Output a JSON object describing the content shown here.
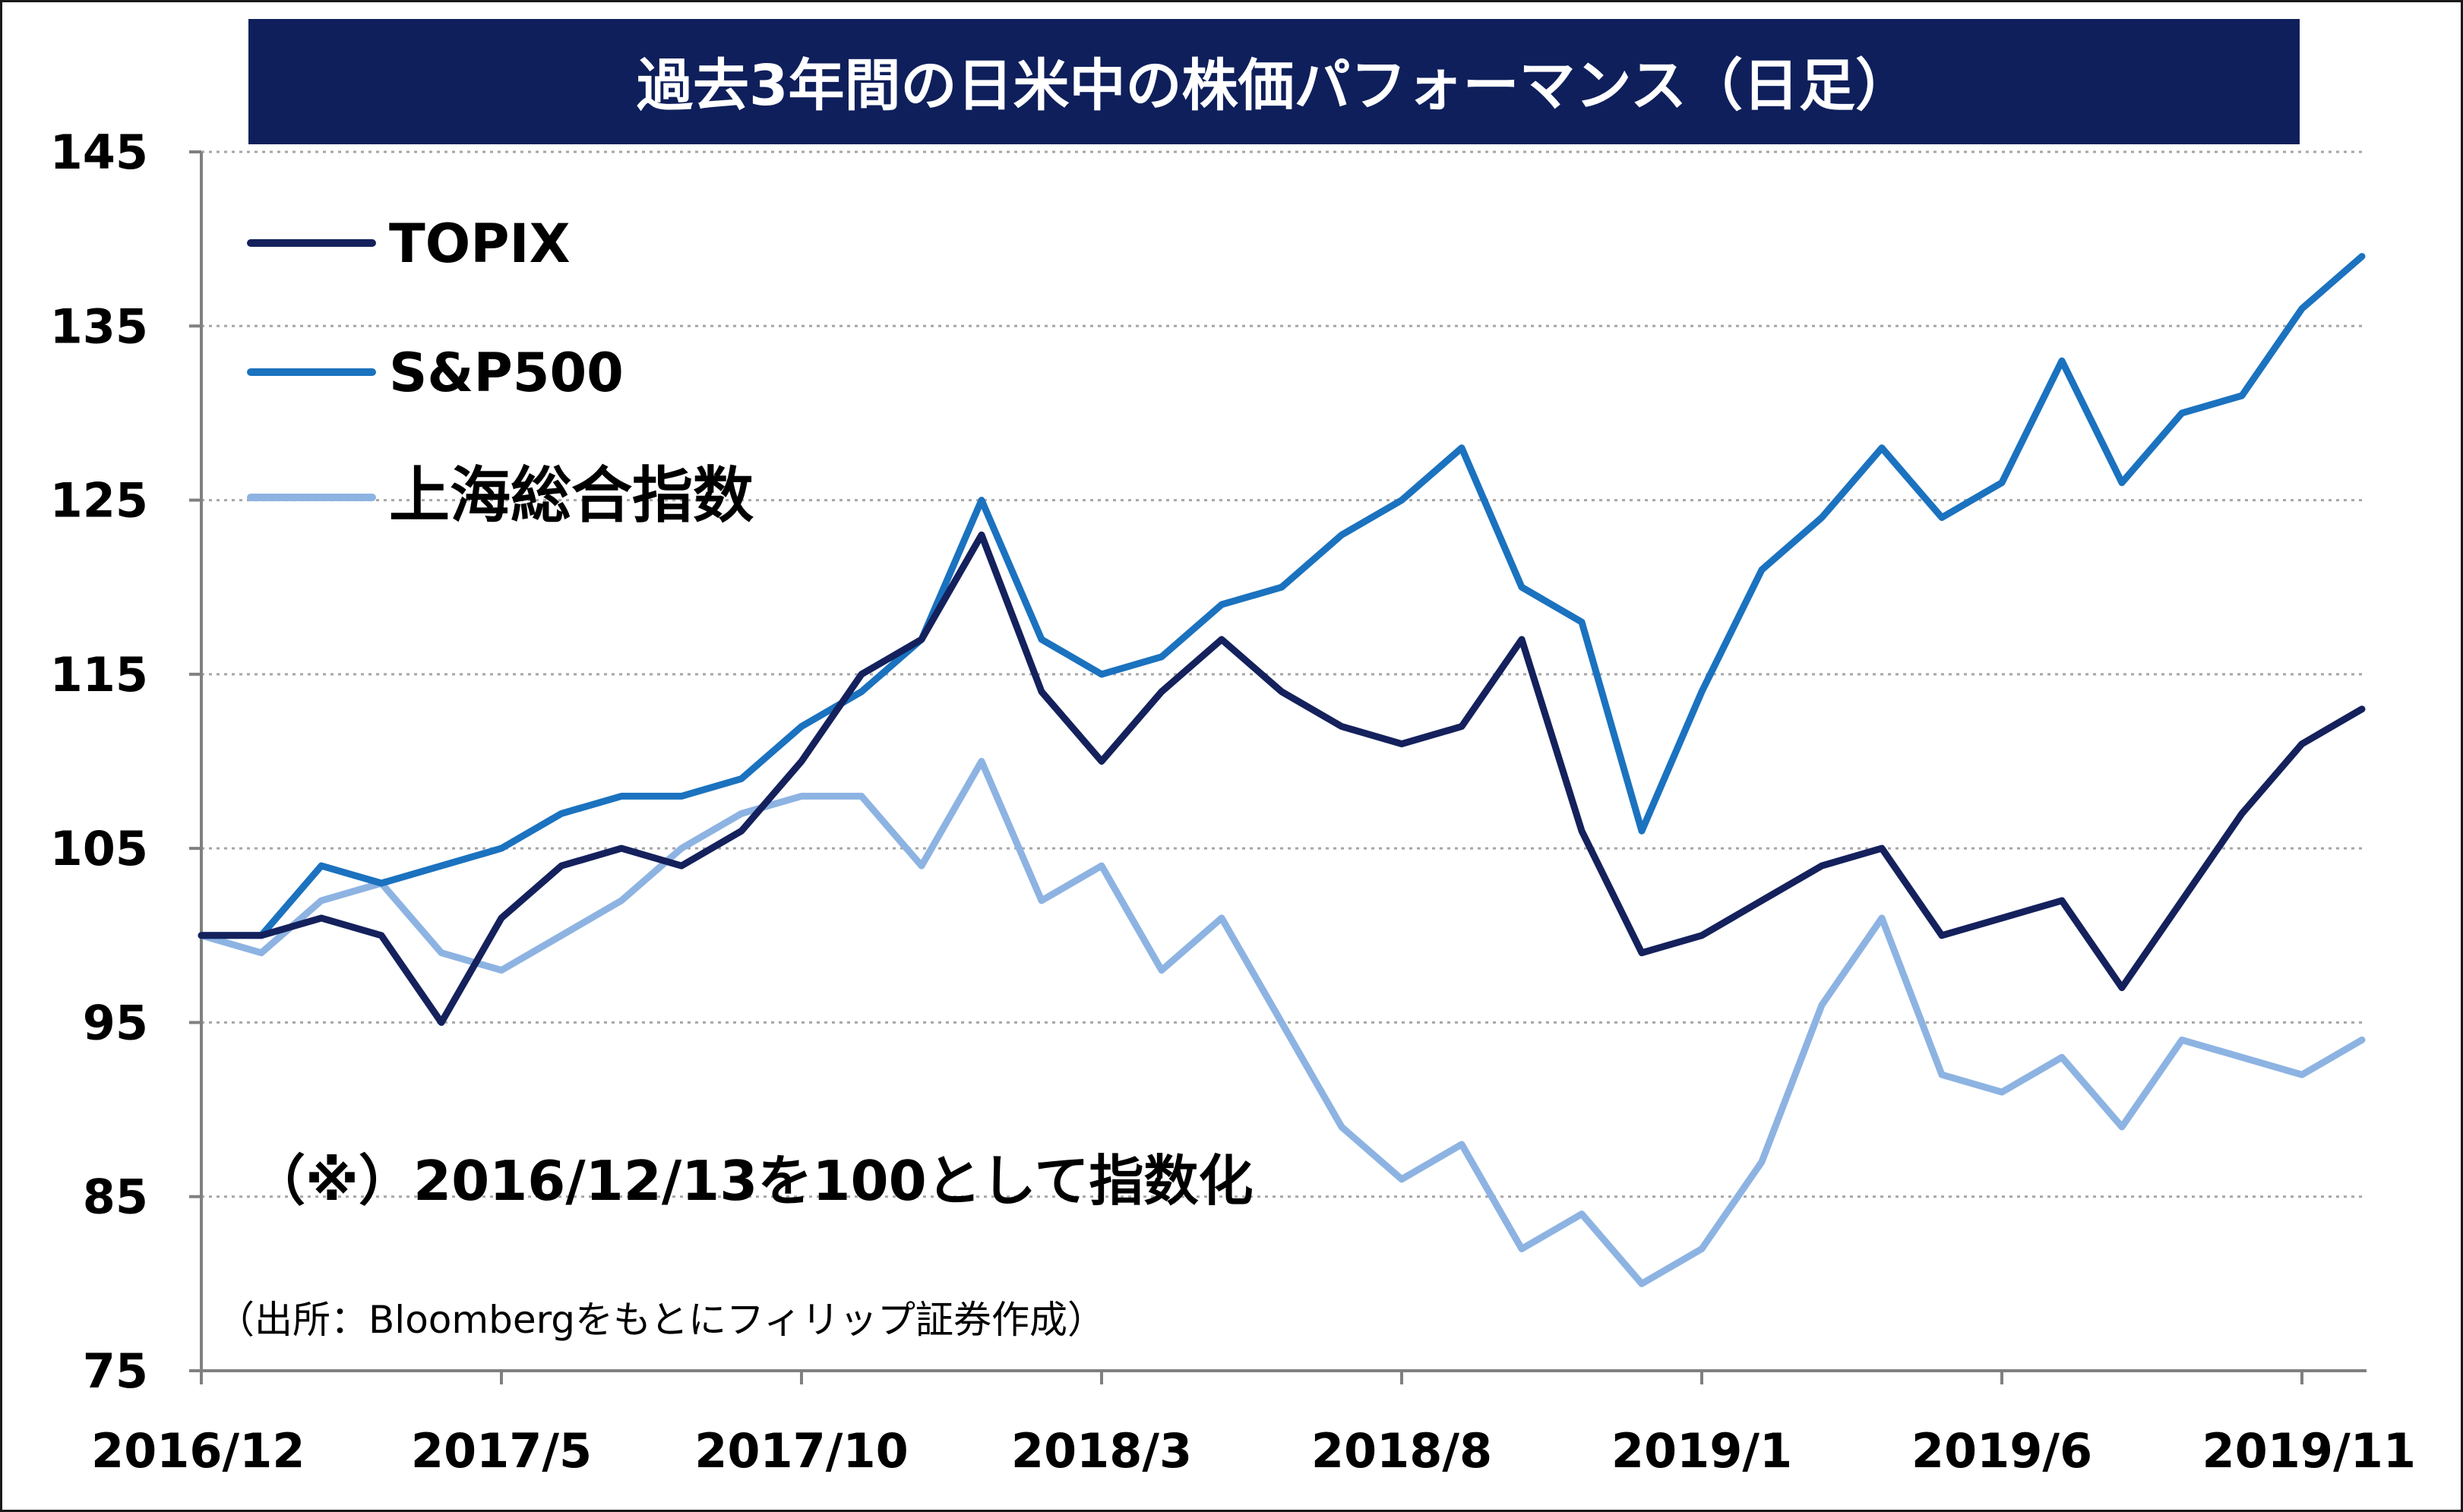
{
  "chart_data": {
    "type": "line",
    "title": "過去3年間の日米中の株価パフォーマンス（日足）",
    "annotation": "（※）2016/12/13を100として指数化",
    "source": "（出所：Bloombergをもとにフィリップ証券作成）",
    "ylim": [
      75,
      145
    ],
    "yticks": [
      "145",
      "135",
      "125",
      "115",
      "105",
      "95",
      "85",
      "75"
    ],
    "xticks": [
      "2016/12",
      "2017/5",
      "2017/10",
      "2018/3",
      "2018/8",
      "2019/1",
      "2019/6",
      "2019/11"
    ],
    "grid": true,
    "legend_position": "top-left",
    "colors": {
      "title_bg": "#0e1f5b",
      "title_text": "#ffffff",
      "grid": "#a6a6a6",
      "axis": "#808080"
    },
    "series": [
      {
        "name": "TOPIX",
        "color": "#14215c",
        "points": [
          [
            "2016/12",
            100
          ],
          [
            "2017/1",
            100
          ],
          [
            "2017/2",
            101
          ],
          [
            "2017/3",
            100
          ],
          [
            "2017/4",
            95
          ],
          [
            "2017/5",
            101
          ],
          [
            "2017/6",
            104
          ],
          [
            "2017/7",
            105
          ],
          [
            "2017/8",
            104
          ],
          [
            "2017/9",
            106
          ],
          [
            "2017/10",
            110
          ],
          [
            "2017/11",
            115
          ],
          [
            "2017/12",
            117
          ],
          [
            "2018/1",
            123
          ],
          [
            "2018/2",
            114
          ],
          [
            "2018/3",
            110
          ],
          [
            "2018/4",
            114
          ],
          [
            "2018/5",
            117
          ],
          [
            "2018/6",
            114
          ],
          [
            "2018/7",
            112
          ],
          [
            "2018/8",
            111
          ],
          [
            "2018/9",
            112
          ],
          [
            "2018/10",
            117
          ],
          [
            "2018/11",
            106
          ],
          [
            "2018/12",
            99
          ],
          [
            "2019/1",
            100
          ],
          [
            "2019/2",
            102
          ],
          [
            "2019/3",
            104
          ],
          [
            "2019/4",
            105
          ],
          [
            "2019/5",
            100
          ],
          [
            "2019/6",
            101
          ],
          [
            "2019/7",
            102
          ],
          [
            "2019/8",
            97
          ],
          [
            "2019/9",
            102
          ],
          [
            "2019/10",
            107
          ],
          [
            "2019/11",
            111
          ],
          [
            "2019/12",
            113
          ]
        ]
      },
      {
        "name": "S&P500",
        "color": "#1b72bf",
        "points": [
          [
            "2016/12",
            100
          ],
          [
            "2017/1",
            100
          ],
          [
            "2017/2",
            104
          ],
          [
            "2017/3",
            103
          ],
          [
            "2017/4",
            104
          ],
          [
            "2017/5",
            105
          ],
          [
            "2017/6",
            107
          ],
          [
            "2017/7",
            108
          ],
          [
            "2017/8",
            108
          ],
          [
            "2017/9",
            109
          ],
          [
            "2017/10",
            112
          ],
          [
            "2017/11",
            114
          ],
          [
            "2017/12",
            117
          ],
          [
            "2018/1",
            125
          ],
          [
            "2018/2",
            117
          ],
          [
            "2018/3",
            115
          ],
          [
            "2018/4",
            116
          ],
          [
            "2018/5",
            119
          ],
          [
            "2018/6",
            120
          ],
          [
            "2018/7",
            123
          ],
          [
            "2018/8",
            125
          ],
          [
            "2018/9",
            128
          ],
          [
            "2018/10",
            120
          ],
          [
            "2018/11",
            118
          ],
          [
            "2018/12",
            106
          ],
          [
            "2019/1",
            114
          ],
          [
            "2019/2",
            121
          ],
          [
            "2019/3",
            124
          ],
          [
            "2019/4",
            128
          ],
          [
            "2019/5",
            124
          ],
          [
            "2019/6",
            126
          ],
          [
            "2019/7",
            133
          ],
          [
            "2019/8",
            126
          ],
          [
            "2019/9",
            130
          ],
          [
            "2019/10",
            131
          ],
          [
            "2019/11",
            136
          ],
          [
            "2019/12",
            139
          ]
        ]
      },
      {
        "name": "上海総合指数",
        "color": "#8db3e2",
        "points": [
          [
            "2016/12",
            100
          ],
          [
            "2017/1",
            99
          ],
          [
            "2017/2",
            102
          ],
          [
            "2017/3",
            103
          ],
          [
            "2017/4",
            99
          ],
          [
            "2017/5",
            98
          ],
          [
            "2017/6",
            100
          ],
          [
            "2017/7",
            102
          ],
          [
            "2017/8",
            105
          ],
          [
            "2017/9",
            107
          ],
          [
            "2017/10",
            108
          ],
          [
            "2017/11",
            108
          ],
          [
            "2017/12",
            104
          ],
          [
            "2018/1",
            110
          ],
          [
            "2018/2",
            102
          ],
          [
            "2018/3",
            104
          ],
          [
            "2018/4",
            98
          ],
          [
            "2018/5",
            101
          ],
          [
            "2018/6",
            95
          ],
          [
            "2018/7",
            89
          ],
          [
            "2018/8",
            86
          ],
          [
            "2018/9",
            88
          ],
          [
            "2018/10",
            82
          ],
          [
            "2018/11",
            84
          ],
          [
            "2018/12",
            80
          ],
          [
            "2019/1",
            82
          ],
          [
            "2019/2",
            87
          ],
          [
            "2019/3",
            96
          ],
          [
            "2019/4",
            101
          ],
          [
            "2019/5",
            92
          ],
          [
            "2019/6",
            91
          ],
          [
            "2019/7",
            93
          ],
          [
            "2019/8",
            89
          ],
          [
            "2019/9",
            94
          ],
          [
            "2019/10",
            93
          ],
          [
            "2019/11",
            92
          ],
          [
            "2019/12",
            94
          ]
        ]
      }
    ]
  }
}
